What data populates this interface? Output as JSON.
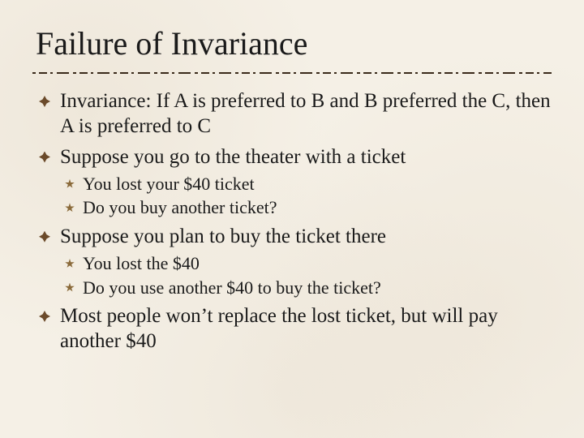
{
  "background_color": "#f5f0e6",
  "text_color": "#1a1a1a",
  "bullet1_color": "#6b4a2a",
  "bullet2_color": "#8a6a3a",
  "divider_color": "#3a2a1a",
  "title": {
    "text": "Failure of Invariance",
    "fontsize": 40
  },
  "body_fontsize_lvl1": 25,
  "body_fontsize_lvl2": 22,
  "items": [
    {
      "text": "Invariance: If A is preferred to B and B preferred the C, then A is preferred to C"
    },
    {
      "text": "Suppose you go to the theater with a ticket",
      "sub": [
        {
          "text": "You lost your $40 ticket"
        },
        {
          "text": "Do you buy another ticket?"
        }
      ]
    },
    {
      "text": "Suppose you plan to buy the ticket there",
      "sub": [
        {
          "text": "You lost the $40"
        },
        {
          "text": "Do you use another $40 to buy the ticket?"
        }
      ]
    },
    {
      "text": "Most people won’t replace the lost ticket, but will pay another $40"
    }
  ]
}
